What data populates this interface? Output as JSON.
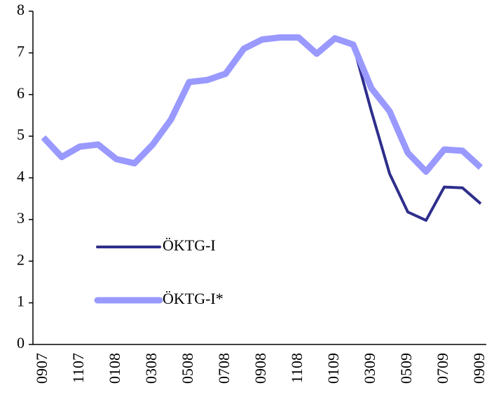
{
  "chart_data": {
    "type": "line",
    "categories": [
      "0907",
      null,
      "1107",
      null,
      "0108",
      null,
      "0308",
      null,
      "0508",
      null,
      "0708",
      null,
      "0908",
      null,
      "1108",
      null,
      "0109",
      null,
      "0309",
      null,
      "0509",
      null,
      "0709",
      null,
      "0909"
    ],
    "series": [
      {
        "name": "ÖKTG-I",
        "color": "#2e2e8c",
        "values": [
          4.97,
          4.5,
          4.75,
          4.8,
          4.45,
          4.35,
          4.8,
          5.4,
          6.3,
          6.35,
          6.5,
          7.1,
          7.32,
          7.37,
          7.37,
          6.98,
          7.35,
          7.2,
          5.6,
          4.1,
          3.18,
          2.98,
          3.78,
          3.76,
          3.38
        ]
      },
      {
        "name": "ÖKTG-I*",
        "color": "#9999ff",
        "values": [
          4.97,
          4.5,
          4.75,
          4.8,
          4.45,
          4.35,
          4.8,
          5.4,
          6.3,
          6.35,
          6.5,
          7.1,
          7.32,
          7.37,
          7.37,
          6.98,
          7.35,
          7.2,
          6.15,
          5.6,
          4.6,
          4.15,
          4.68,
          4.65,
          4.25
        ]
      }
    ],
    "ylim": [
      0,
      8
    ],
    "yticks": [
      0,
      1,
      2,
      3,
      4,
      5,
      6,
      7,
      8
    ]
  }
}
